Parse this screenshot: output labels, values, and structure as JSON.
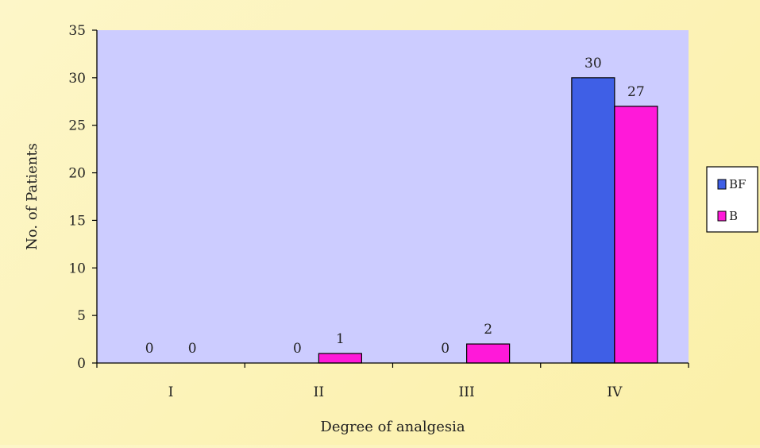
{
  "chart_data": {
    "type": "bar",
    "categories": [
      "I",
      "II",
      "III",
      "IV"
    ],
    "series": [
      {
        "name": "BF",
        "values": [
          0,
          0,
          0,
          30
        ],
        "color": "#3f5fe6"
      },
      {
        "name": "B",
        "values": [
          0,
          1,
          2,
          27
        ],
        "color": "#ff19d9"
      }
    ],
    "xlabel": "Degree of analgesia",
    "ylabel": "No. of Patients",
    "ylim": [
      0,
      35
    ],
    "yticks": [
      0,
      5,
      10,
      15,
      20,
      25,
      30,
      35
    ],
    "grid": false,
    "legend_position": "right",
    "plot_background": "#ccccff"
  }
}
